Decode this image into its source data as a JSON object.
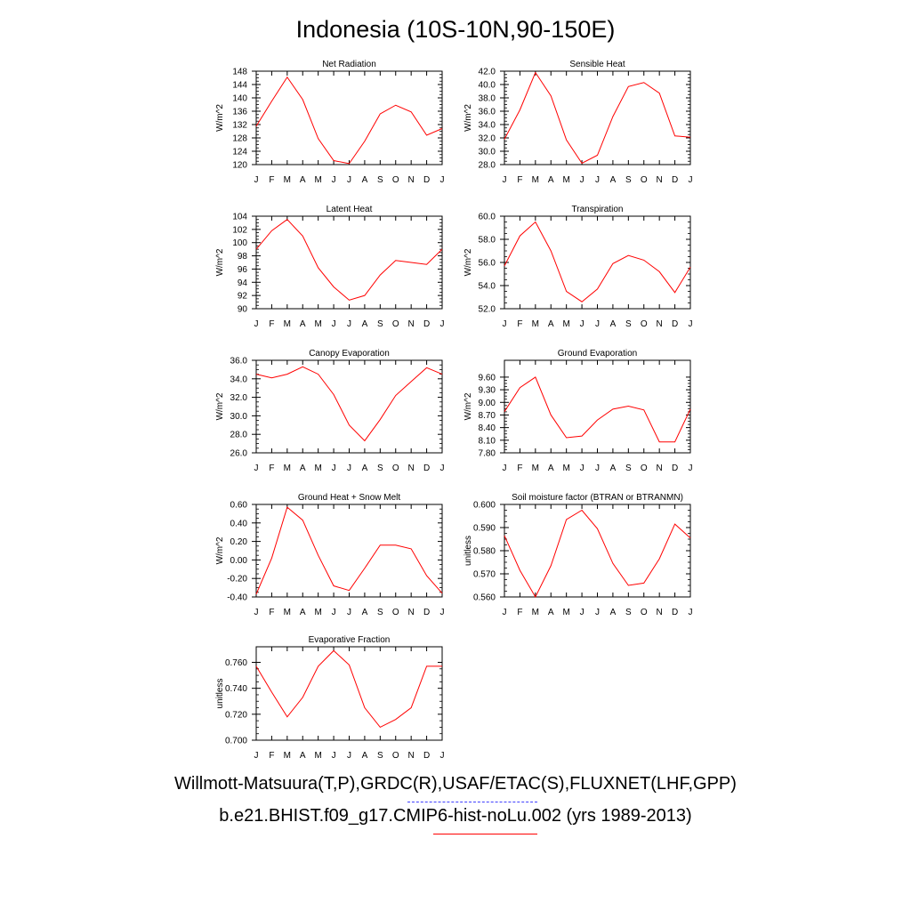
{
  "title": "Indonesia (10S-10N,90-150E)",
  "legend": {
    "observations": "Willmott-Matsuura(T,P),GRDC(R),USAF/ETAC(S),FLUXNET(LHF,GPP)",
    "model": "b.e21.BHIST.f09_g17.CMIP6-hist-noLu.002 (yrs 1989-2013)",
    "observations_color": "#4040ff",
    "model_color": "#ff0000"
  },
  "chart_data": [
    {
      "type": "line",
      "title": "Net Radiation",
      "ylabel": "W/m^2",
      "categories": [
        "J",
        "F",
        "M",
        "A",
        "M",
        "J",
        "J",
        "A",
        "S",
        "O",
        "N",
        "D",
        "J"
      ],
      "ylim": [
        120,
        148
      ],
      "yticks": [
        "120",
        "124",
        "128",
        "132",
        "136",
        "140",
        "144",
        "148"
      ],
      "series": [
        {
          "color": "#ff0000",
          "values": [
            131.5,
            139.0,
            146.2,
            139.5,
            127.8,
            121.2,
            120.3,
            127.0,
            135.2,
            137.8,
            135.8,
            128.8,
            130.8
          ]
        }
      ]
    },
    {
      "type": "line",
      "title": "Sensible Heat",
      "ylabel": "W/m^2",
      "categories": [
        "J",
        "F",
        "M",
        "A",
        "M",
        "J",
        "J",
        "A",
        "S",
        "O",
        "N",
        "D",
        "J"
      ],
      "ylim": [
        28,
        42
      ],
      "yticks": [
        "28.0",
        "30.0",
        "32.0",
        "34.0",
        "36.0",
        "38.0",
        "40.0",
        "42.0"
      ],
      "series": [
        {
          "color": "#ff0000",
          "values": [
            31.8,
            36.2,
            41.8,
            38.3,
            31.7,
            28.2,
            29.4,
            35.2,
            39.7,
            40.3,
            38.7,
            32.3,
            32.1
          ]
        }
      ]
    },
    {
      "type": "line",
      "title": "Latent Heat",
      "ylabel": "W/m^2",
      "categories": [
        "J",
        "F",
        "M",
        "A",
        "M",
        "J",
        "J",
        "A",
        "S",
        "O",
        "N",
        "D",
        "J"
      ],
      "ylim": [
        90,
        104
      ],
      "yticks": [
        "90",
        "92",
        "94",
        "96",
        "98",
        "100",
        "102",
        "104"
      ],
      "series": [
        {
          "color": "#ff0000",
          "values": [
            99.0,
            101.8,
            103.5,
            101.0,
            96.2,
            93.3,
            91.3,
            92.0,
            95.1,
            97.3,
            97.0,
            96.7,
            99.0
          ]
        }
      ]
    },
    {
      "type": "line",
      "title": "Transpiration",
      "ylabel": "W/m^2",
      "categories": [
        "J",
        "F",
        "M",
        "A",
        "M",
        "J",
        "J",
        "A",
        "S",
        "O",
        "N",
        "D",
        "J"
      ],
      "ylim": [
        52,
        60
      ],
      "yticks": [
        "52.0",
        "54.0",
        "56.0",
        "58.0",
        "60.0"
      ],
      "series": [
        {
          "color": "#ff0000",
          "values": [
            55.7,
            58.3,
            59.5,
            57.0,
            53.5,
            52.6,
            53.7,
            55.9,
            56.6,
            56.2,
            55.2,
            53.4,
            55.6
          ]
        }
      ]
    },
    {
      "type": "line",
      "title": "Canopy Evaporation",
      "ylabel": "W/m^2",
      "categories": [
        "J",
        "F",
        "M",
        "A",
        "M",
        "J",
        "J",
        "A",
        "S",
        "O",
        "N",
        "D",
        "J"
      ],
      "ylim": [
        26,
        36
      ],
      "yticks": [
        "26.0",
        "28.0",
        "30.0",
        "32.0",
        "34.0",
        "36.0"
      ],
      "series": [
        {
          "color": "#ff0000",
          "values": [
            34.5,
            34.1,
            34.5,
            35.3,
            34.5,
            32.3,
            29.0,
            27.3,
            29.6,
            32.2,
            33.7,
            35.2,
            34.5
          ]
        }
      ]
    },
    {
      "type": "line",
      "title": "Ground Evaporation",
      "ylabel": "W/m^2",
      "categories": [
        "J",
        "F",
        "M",
        "A",
        "M",
        "J",
        "J",
        "A",
        "S",
        "O",
        "N",
        "D",
        "J"
      ],
      "ylim": [
        7.8,
        10.0
      ],
      "yticks": [
        "7.80",
        "8.10",
        "8.40",
        "8.70",
        "9.00",
        "9.30",
        "9.60"
      ],
      "series": [
        {
          "color": "#ff0000",
          "values": [
            8.78,
            9.35,
            9.6,
            8.7,
            8.16,
            8.2,
            8.58,
            8.84,
            8.91,
            8.82,
            8.06,
            8.06,
            8.84
          ]
        }
      ]
    },
    {
      "type": "line",
      "title": "Ground Heat + Snow Melt",
      "ylabel": "W/m^2",
      "categories": [
        "J",
        "F",
        "M",
        "A",
        "M",
        "J",
        "J",
        "A",
        "S",
        "O",
        "N",
        "D",
        "J"
      ],
      "ylim": [
        -0.4,
        0.6
      ],
      "yticks": [
        "-0.40",
        "-0.20",
        "0.00",
        "0.20",
        "0.40",
        "0.60"
      ],
      "series": [
        {
          "color": "#ff0000",
          "values": [
            -0.37,
            0.02,
            0.57,
            0.43,
            0.05,
            -0.28,
            -0.33,
            -0.09,
            0.16,
            0.16,
            0.12,
            -0.17,
            -0.36
          ]
        }
      ]
    },
    {
      "type": "line",
      "title": "Soil moisture factor (BTRAN or BTRANMN)",
      "ylabel": "unitless",
      "categories": [
        "J",
        "F",
        "M",
        "A",
        "M",
        "J",
        "J",
        "A",
        "S",
        "O",
        "N",
        "D",
        "J"
      ],
      "ylim": [
        0.56,
        0.6
      ],
      "yticks": [
        "0.560",
        "0.570",
        "0.580",
        "0.590",
        "0.600"
      ],
      "series": [
        {
          "color": "#ff0000",
          "values": [
            0.5865,
            0.5715,
            0.56,
            0.5735,
            0.5935,
            0.5975,
            0.5895,
            0.5745,
            0.565,
            0.566,
            0.5765,
            0.5915,
            0.5855
          ]
        }
      ]
    },
    {
      "type": "line",
      "title": "Evaporative Fraction",
      "ylabel": "unitless",
      "categories": [
        "J",
        "F",
        "M",
        "A",
        "M",
        "J",
        "J",
        "A",
        "S",
        "O",
        "N",
        "D",
        "J"
      ],
      "ylim": [
        0.7,
        0.772
      ],
      "yticks": [
        "0.700",
        "0.720",
        "0.740",
        "0.760"
      ],
      "series": [
        {
          "color": "#ff0000",
          "values": [
            0.757,
            0.737,
            0.718,
            0.733,
            0.757,
            0.769,
            0.758,
            0.725,
            0.71,
            0.716,
            0.725,
            0.757,
            0.757
          ]
        }
      ]
    }
  ]
}
